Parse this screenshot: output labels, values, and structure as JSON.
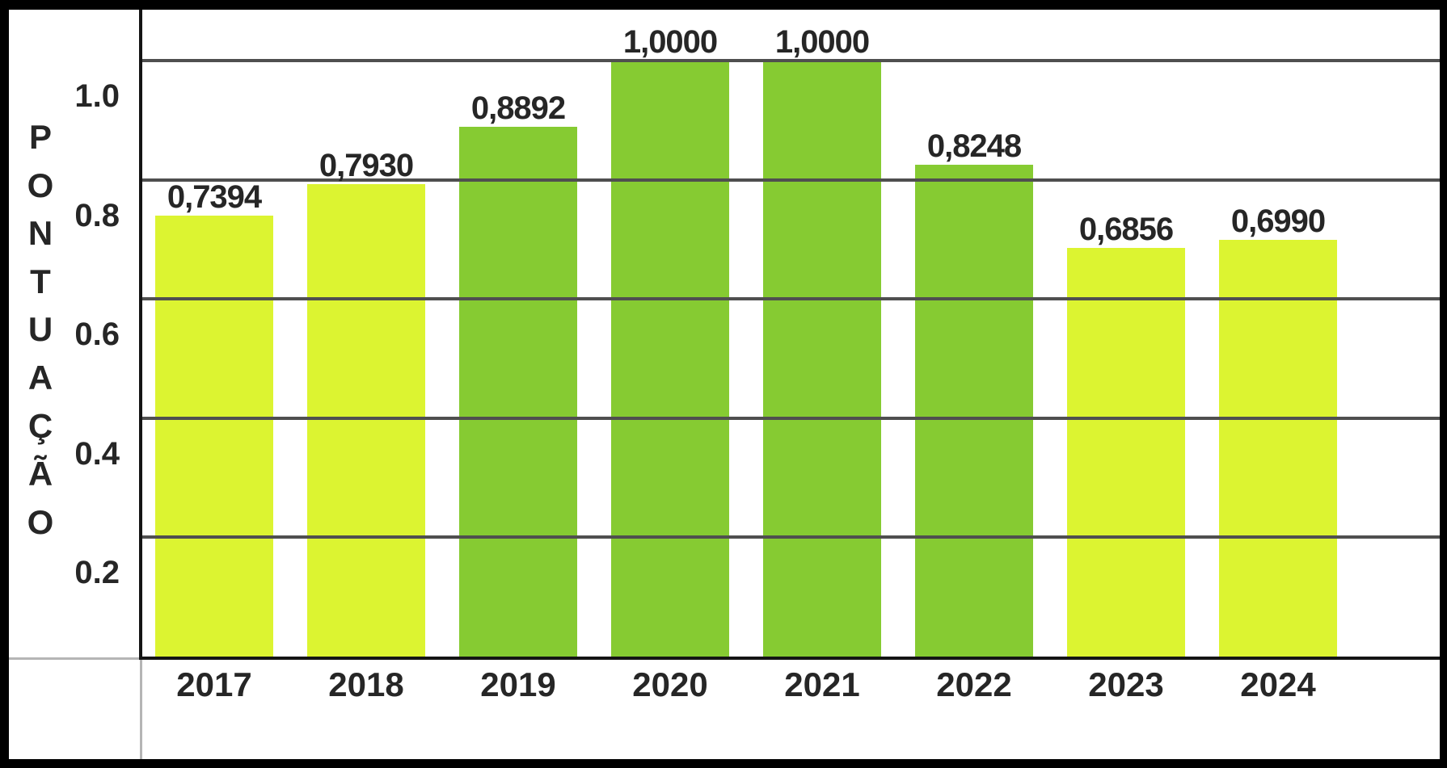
{
  "chart_data": {
    "type": "bar",
    "title": "",
    "ylabel": "PONTUAÇÃO",
    "ylabel_letters": [
      "P",
      "O",
      "N",
      "T",
      "U",
      "A",
      "Ç",
      "Ã",
      "O"
    ],
    "categories": [
      "2017",
      "2018",
      "2019",
      "2020",
      "2021",
      "2022",
      "2023",
      "2024"
    ],
    "values": [
      0.7394,
      0.793,
      0.8892,
      1.0,
      1.0,
      0.8248,
      0.6856,
      0.699
    ],
    "bar_value_labels": [
      "0,7394",
      "0,7930",
      "0,8892",
      "1,0000",
      "1,0000",
      "0,8248",
      "0,6856",
      "0,6990"
    ],
    "bar_color_keys": [
      "light",
      "light",
      "dark",
      "dark",
      "dark",
      "dark",
      "light",
      "light"
    ],
    "yticks": [
      {
        "value": 1.0,
        "label": "1.0"
      },
      {
        "value": 0.8,
        "label": "0.8"
      },
      {
        "value": 0.6,
        "label": "0.6"
      },
      {
        "value": 0.4,
        "label": "0.4"
      },
      {
        "value": 0.2,
        "label": "0.2"
      }
    ],
    "ylim": [
      0,
      1.085
    ],
    "grid": true,
    "legend": "none",
    "colors": {
      "bar_light": "#dcf431",
      "bar_dark": "#86cb32",
      "gridline": "#4f4f4f",
      "axis": "#141414",
      "axis_extension": "#b5b5b5",
      "text": "#262626",
      "plot_background": "#ffffff",
      "frame": "#000000"
    }
  }
}
